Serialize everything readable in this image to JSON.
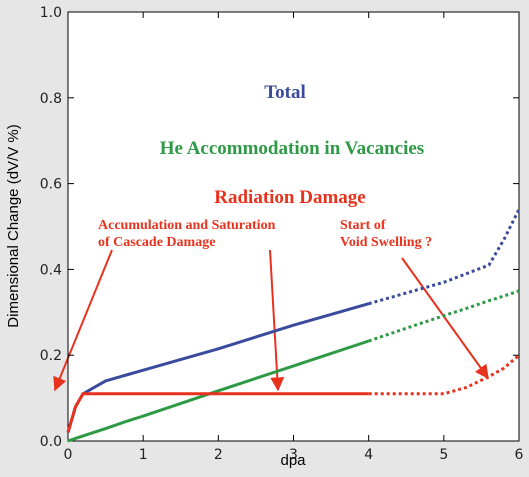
{
  "chart_data": {
    "type": "line",
    "xlabel": "dpa",
    "ylabel": "Dimensional Change (dV/V %)",
    "x": [
      0,
      0.1,
      0.2,
      0.5,
      0.8,
      1,
      2,
      3,
      4,
      4.5,
      5,
      5.3,
      5.6,
      5.8,
      6
    ],
    "dotted_from_x": 4,
    "series": [
      {
        "name": "Total",
        "color": "#3a4a9c",
        "values": [
          0.02,
          0.08,
          0.11,
          0.14,
          0.155,
          0.165,
          0.215,
          0.27,
          0.32,
          0.345,
          0.37,
          0.39,
          0.41,
          0.47,
          0.54
        ]
      },
      {
        "name": "He Accommodation in Vacancies",
        "color": "#2e9a45",
        "values": [
          0,
          0.006,
          0.012,
          0.029,
          0.047,
          0.058,
          0.117,
          0.175,
          0.233,
          0.263,
          0.292,
          0.309,
          0.327,
          0.338,
          0.35
        ]
      },
      {
        "name": "Radiation Damage",
        "color": "#e8321e",
        "values": [
          0.02,
          0.08,
          0.11,
          0.11,
          0.11,
          0.11,
          0.11,
          0.11,
          0.11,
          0.11,
          0.11,
          0.125,
          0.15,
          0.17,
          0.2
        ]
      }
    ],
    "annotations": [
      {
        "lines": [
          "Accumulation and Saturation",
          "of Cascade Damage"
        ],
        "color": "#e8321e"
      },
      {
        "lines": [
          "Start of",
          "Void Swelling ?"
        ],
        "color": "#e8321e"
      }
    ],
    "xlim": [
      0,
      6
    ],
    "ylim": [
      0,
      1
    ],
    "xticks": [
      0,
      1,
      2,
      3,
      4,
      5,
      6
    ],
    "yticks": [
      {
        "value": 0,
        "label": "0.0"
      },
      0.2,
      0.4,
      0.6,
      0.8,
      {
        "value": 1,
        "label": "1.0"
      }
    ]
  }
}
